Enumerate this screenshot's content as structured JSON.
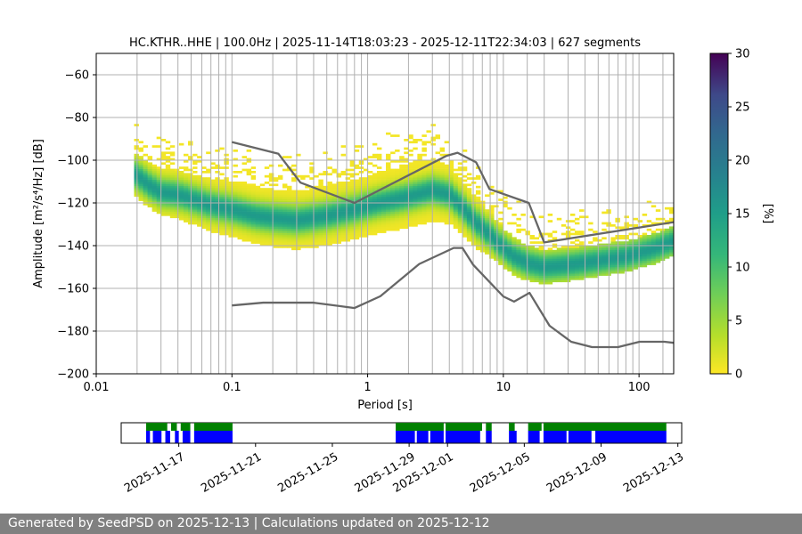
{
  "footer": {
    "text": "Generated by SeedPSD on 2025-12-13 | Calculations updated on 2025-12-12"
  },
  "colors": {
    "model_line": "#666666",
    "grid": "#b0b0b0",
    "avail_green": "#008000",
    "avail_blue": "#0000ff"
  },
  "chart_data": [
    {
      "type": "heatmap",
      "title": "HC.KTHR..HHE | 100.0Hz | 2025-11-14T18:03:23 - 2025-12-11T22:34:03 | 627 segments",
      "xlabel": "Period [s]",
      "ylabel": "Amplitude [m²/s⁴/Hz] [dB]",
      "xscale": "log",
      "xlim": [
        0.01,
        180
      ],
      "ylim": [
        -200,
        -50
      ],
      "xticks": [
        0.01,
        0.1,
        1,
        10,
        100
      ],
      "xtick_labels": [
        "0.01",
        "0.1",
        "1",
        "10",
        "100"
      ],
      "yticks": [
        -200,
        -180,
        -160,
        -140,
        -120,
        -100,
        -80,
        -60
      ],
      "ytick_labels": [
        "−200",
        "−180",
        "−160",
        "−140",
        "−120",
        "−100",
        "−80",
        "−60"
      ],
      "colorbar": {
        "label": "[%]",
        "range": [
          0,
          30
        ],
        "ticks": [
          0,
          5,
          10,
          15,
          20,
          25,
          30
        ],
        "tick_labels": [
          "0",
          "5",
          "10",
          "15",
          "20",
          "25",
          "30"
        ],
        "colormap": "viridis_r"
      },
      "psd_mode_curve": [
        [
          0.019,
          -106
        ],
        [
          0.025,
          -112
        ],
        [
          0.03,
          -115
        ],
        [
          0.04,
          -116
        ],
        [
          0.05,
          -118
        ],
        [
          0.07,
          -121
        ],
        [
          0.1,
          -123
        ],
        [
          0.15,
          -126
        ],
        [
          0.2,
          -127
        ],
        [
          0.3,
          -128
        ],
        [
          0.5,
          -126
        ],
        [
          0.8,
          -123
        ],
        [
          1.2,
          -120
        ],
        [
          2,
          -117
        ],
        [
          3,
          -114
        ],
        [
          4,
          -116
        ],
        [
          5,
          -122
        ],
        [
          6,
          -128
        ],
        [
          8,
          -135
        ],
        [
          10,
          -141
        ],
        [
          12,
          -145
        ],
        [
          15,
          -148
        ],
        [
          20,
          -150
        ],
        [
          30,
          -149
        ],
        [
          50,
          -147
        ],
        [
          80,
          -145
        ],
        [
          120,
          -142
        ],
        [
          180,
          -138
        ]
      ],
      "band_halfwidth_db": [
        [
          0.019,
          10
        ],
        [
          0.1,
          13
        ],
        [
          0.5,
          14
        ],
        [
          1,
          14
        ],
        [
          3,
          15
        ],
        [
          6,
          12
        ],
        [
          10,
          9
        ],
        [
          20,
          8
        ],
        [
          180,
          7
        ]
      ],
      "vertical_gridlines_period_s": [
        0.02,
        0.03,
        0.04,
        0.05,
        0.06,
        0.07,
        0.08,
        0.09,
        0.1,
        0.2,
        0.3,
        0.4,
        0.5,
        0.6,
        0.7,
        0.8,
        0.9,
        1,
        2,
        3,
        4,
        5,
        6,
        7,
        8,
        9,
        10,
        15,
        20,
        30,
        40,
        50,
        60,
        70,
        80,
        90,
        100,
        150
      ],
      "nhnm": [
        [
          0.1,
          -91.5
        ],
        [
          0.22,
          -97
        ],
        [
          0.32,
          -110.5
        ],
        [
          0.8,
          -120
        ],
        [
          3.8,
          -98
        ],
        [
          4.6,
          -96.5
        ],
        [
          6.3,
          -101
        ],
        [
          7.9,
          -113.5
        ],
        [
          15.4,
          -120
        ],
        [
          20,
          -138.5
        ],
        [
          180,
          -129
        ]
      ],
      "nlnm": [
        [
          0.1,
          -168
        ],
        [
          0.17,
          -166.7
        ],
        [
          0.4,
          -166.7
        ],
        [
          0.8,
          -169.2
        ],
        [
          1.24,
          -163.7
        ],
        [
          2.4,
          -148.6
        ],
        [
          4.3,
          -141.1
        ],
        [
          5,
          -141.1
        ],
        [
          6,
          -149
        ],
        [
          10,
          -163.8
        ],
        [
          12,
          -166.2
        ],
        [
          15.6,
          -162.1
        ],
        [
          21.9,
          -177.5
        ],
        [
          31.6,
          -185
        ],
        [
          45,
          -187.5
        ],
        [
          70,
          -187.5
        ],
        [
          101,
          -185
        ],
        [
          154,
          -185
        ],
        [
          180,
          -185.5
        ]
      ]
    },
    {
      "type": "timeline",
      "xlim": [
        "2025-11-14",
        "2025-12-13"
      ],
      "xtick_labels": [
        "2025-11-17",
        "2025-11-21",
        "2025-11-25",
        "2025-11-29",
        "2025-12-01",
        "2025-12-05",
        "2025-12-09",
        "2025-12-13"
      ],
      "xtick_days": [
        3,
        7,
        11,
        15,
        17,
        21,
        25,
        29
      ],
      "green_segments_days": [
        [
          1.3,
          2.4
        ],
        [
          2.6,
          2.9
        ],
        [
          3.1,
          3.6
        ],
        [
          3.8,
          5.8
        ],
        [
          14.3,
          16.8
        ],
        [
          16.9,
          18.8
        ],
        [
          19.0,
          19.3
        ],
        [
          20.2,
          20.5
        ],
        [
          21.2,
          21.9
        ],
        [
          22.0,
          28.4
        ]
      ],
      "blue_segments_days": [
        [
          1.3,
          1.5
        ],
        [
          1.65,
          2.1
        ],
        [
          2.3,
          2.55
        ],
        [
          2.8,
          3.0
        ],
        [
          3.2,
          3.6
        ],
        [
          3.8,
          5.8
        ],
        [
          14.3,
          15.3
        ],
        [
          15.4,
          16.0
        ],
        [
          16.1,
          16.8
        ],
        [
          16.9,
          18.7
        ],
        [
          19.0,
          19.3
        ],
        [
          20.2,
          20.6
        ],
        [
          21.2,
          21.8
        ],
        [
          22.0,
          23.2
        ],
        [
          23.3,
          24.5
        ],
        [
          24.7,
          28.4
        ]
      ]
    }
  ]
}
